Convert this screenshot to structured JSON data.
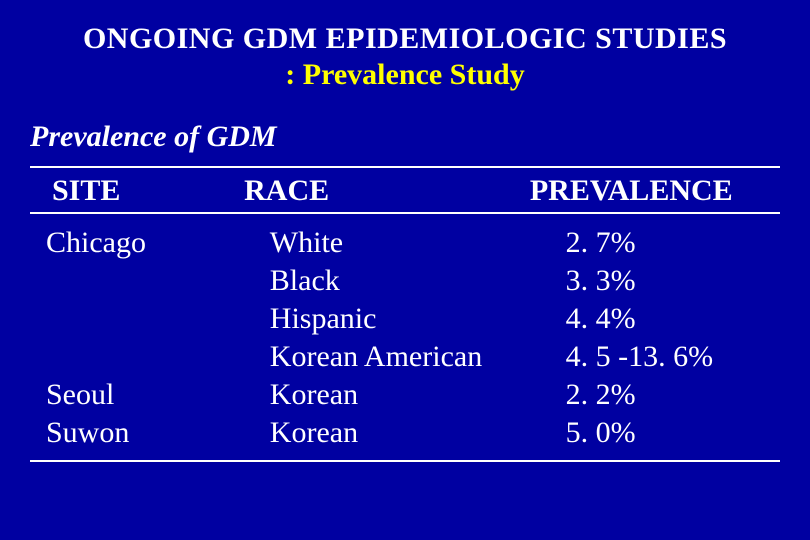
{
  "background_color": "#0000a1",
  "title": {
    "line1": "ONGOING GDM EPIDEMIOLOGIC STUDIES",
    "line2": ": Prevalence Study",
    "line1_color": "#ffffff",
    "line2_color": "#ffff00",
    "fontsize": 30,
    "weight": "bold"
  },
  "subheading": {
    "text": "Prevalence of GDM",
    "color": "#ffffff",
    "fontsize": 30,
    "italic": true,
    "weight": "bold"
  },
  "rule_color": "#ffffff",
  "table": {
    "header_color": "#ffffff",
    "body_color": "#ffffff",
    "fontsize": 30,
    "columns": {
      "site": "SITE",
      "race": "RACE",
      "prevalence": "PREVALENCE"
    },
    "sites": [
      "Chicago",
      "",
      "",
      "",
      "Seoul",
      "Suwon"
    ],
    "races": [
      "White",
      "Black",
      "Hispanic",
      "Korean American",
      "Korean",
      "Korean"
    ],
    "prevalences": [
      "2. 7%",
      "3. 3%",
      "4. 4%",
      "4. 5 -13. 6%",
      "2. 2%",
      "5. 0%"
    ]
  }
}
